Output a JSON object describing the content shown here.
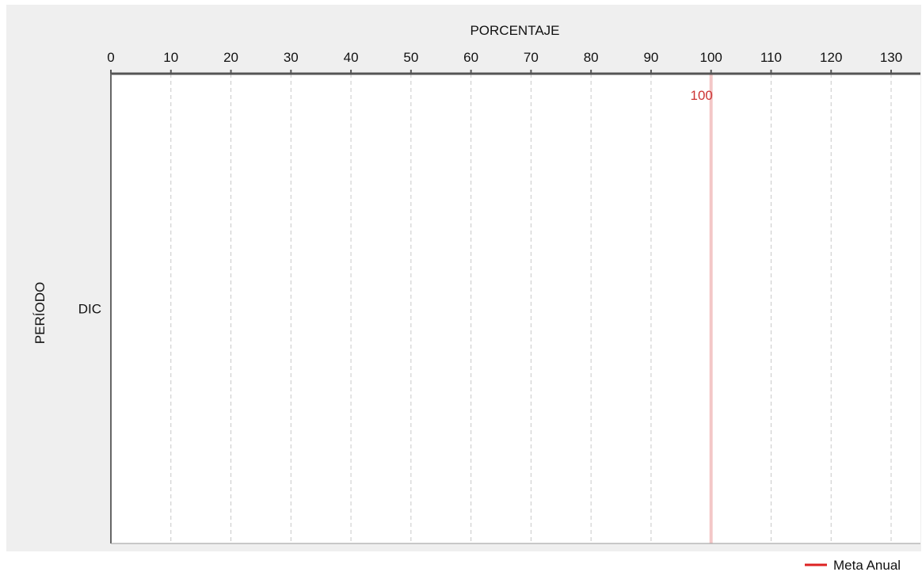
{
  "chart_data": {
    "type": "bar",
    "orientation": "horizontal",
    "title": "",
    "xlabel": "PORCENTAJE",
    "ylabel": "PERÍODO",
    "xlim": [
      0,
      135
    ],
    "x_ticks": [
      0,
      10,
      20,
      30,
      40,
      50,
      60,
      70,
      80,
      90,
      100,
      110,
      120,
      130
    ],
    "x_axis_position": "top",
    "grid": {
      "vertical": true,
      "style": "dashed"
    },
    "categories": [
      "DIC"
    ],
    "series": [],
    "reference_lines": [
      {
        "name": "Meta Anual",
        "value": 100,
        "label": "100",
        "color": "#cc3333"
      }
    ],
    "legend": {
      "position": "bottom-right",
      "entries": [
        "Meta Anual"
      ]
    },
    "colors": {
      "background": "#efefef",
      "plot": "#ffffff",
      "axis": "#555555",
      "grid": "#c8c8c8",
      "meta": "#dd2222"
    }
  }
}
